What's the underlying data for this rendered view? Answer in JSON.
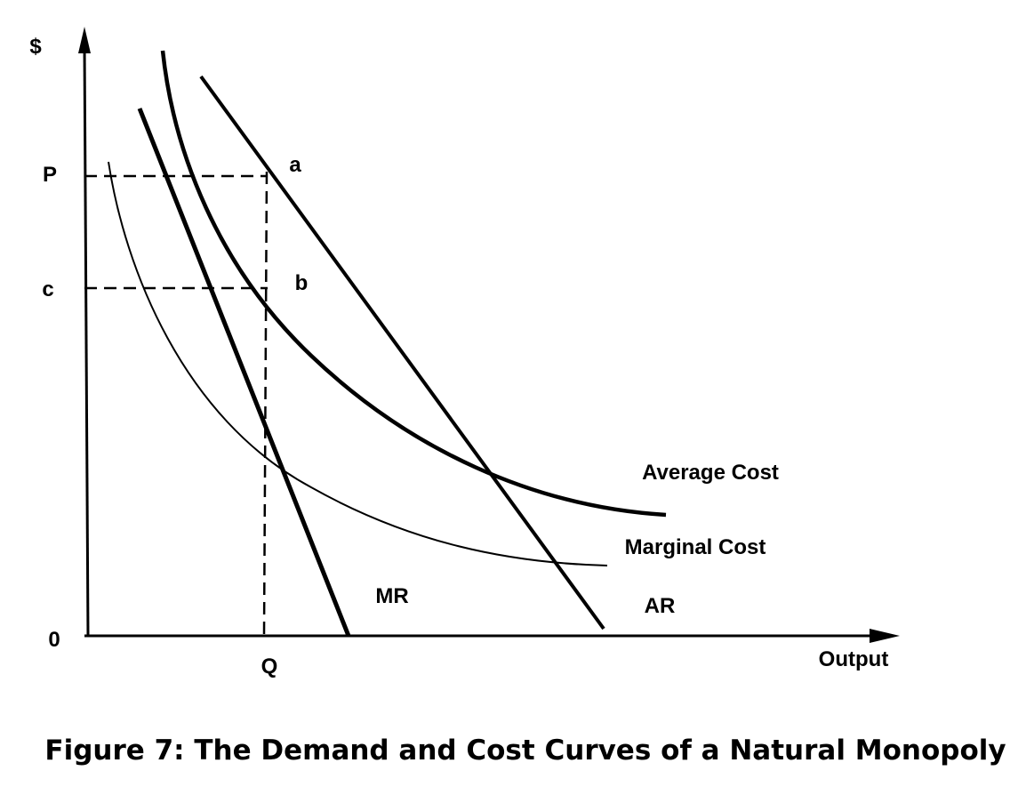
{
  "chart_data": {
    "type": "line",
    "title": "Figure 7: The Demand and Cost Curves of a Natural Monopoly",
    "ylabel": "$",
    "xlabel": "Output",
    "origin_label": "0",
    "grid": false,
    "y_tick_labels": [
      "P",
      "c"
    ],
    "x_tick_labels": [
      "Q"
    ],
    "series": [
      {
        "name": "AR",
        "shape": "straight line, downward sloping"
      },
      {
        "name": "MR",
        "shape": "straight line, steeper than AR, reaching the output axis"
      },
      {
        "name": "Average Cost",
        "shape": "convex curve, declining"
      },
      {
        "name": "Marginal Cost",
        "shape": "convex curve, declining, below Average Cost"
      }
    ],
    "points": [
      {
        "label": "a",
        "on": "AR at Q, height P"
      },
      {
        "label": "b",
        "on": "Average Cost at Q, height c"
      }
    ],
    "guides": [
      {
        "from": "P",
        "to": "a",
        "style": "dashed"
      },
      {
        "from": "c",
        "to": "b",
        "style": "dashed"
      },
      {
        "from": "a",
        "to": "Q",
        "style": "dashed"
      }
    ]
  }
}
